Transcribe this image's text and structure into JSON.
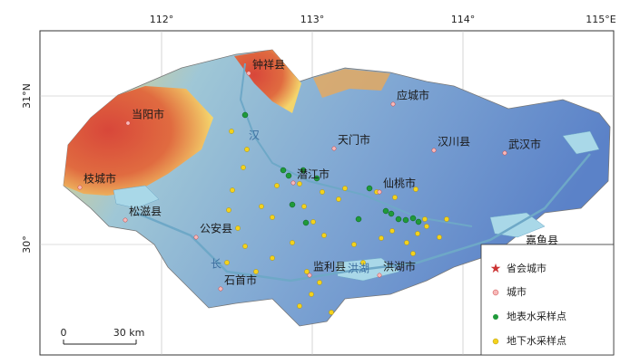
{
  "map": {
    "lon_labels": [
      "112°",
      "113°",
      "114°",
      "115°E"
    ],
    "lat_labels": [
      "31°N",
      "30°"
    ],
    "places": [
      "钟祥县",
      "应城市",
      "天门市",
      "汉川县",
      "武汉市",
      "当阳市",
      "枝城市",
      "潜江市",
      "仙桃市",
      "松滋县",
      "公安县",
      "嘉鱼县",
      "监利县",
      "洪湖市",
      "石首市"
    ],
    "water_labels": [
      "汉",
      "长",
      "洪湖"
    ],
    "legend": [
      "省会城市",
      "城市",
      "地表水采样点",
      "地下水采样点"
    ],
    "scale": [
      "0",
      "30 km"
    ]
  }
}
